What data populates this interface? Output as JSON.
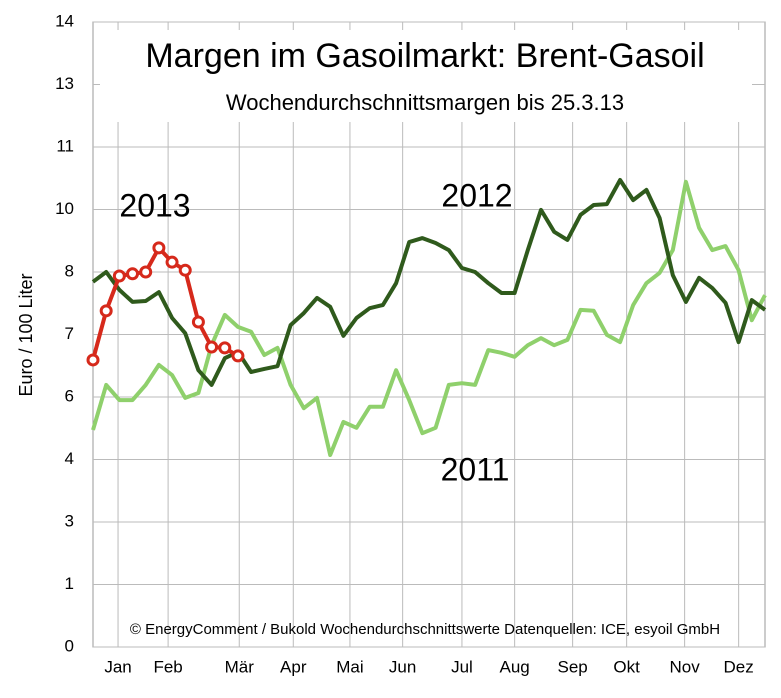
{
  "chart_data": {
    "type": "line",
    "title": "Margen im Gasoilmarkt: Brent-Gasoil",
    "subtitle": "Wochendurchschnittsmargen bis 25.3.13",
    "y_label": "Euro / 100 Liter",
    "note": "© EnergyComment / Bukold Wochendurchschnittswerte Datenquellen: ICE, esyoil GmbH",
    "x": [
      1,
      2,
      3,
      4,
      5,
      6,
      7,
      8,
      9,
      10,
      11,
      12,
      13,
      14,
      15,
      16,
      17,
      18,
      19,
      20,
      21,
      22,
      23,
      24,
      25,
      26,
      27,
      28,
      29,
      30,
      31,
      32,
      33,
      34,
      35,
      36,
      37,
      38,
      39,
      40,
      41,
      42,
      43,
      44,
      45,
      46,
      47,
      48,
      49,
      50,
      51,
      52
    ],
    "xlim": [
      1,
      52
    ],
    "xticks": [
      {
        "value": 2.9,
        "label": "Jan"
      },
      {
        "value": 6.7,
        "label": "Feb"
      },
      {
        "value": 12.1,
        "label": "Mär"
      },
      {
        "value": 16.2,
        "label": "Apr"
      },
      {
        "value": 20.5,
        "label": "Mai"
      },
      {
        "value": 24.5,
        "label": "Jun"
      },
      {
        "value": 29,
        "label": "Jul"
      },
      {
        "value": 33,
        "label": "Aug"
      },
      {
        "value": 37.4,
        "label": "Sep"
      },
      {
        "value": 41.5,
        "label": "Okt"
      },
      {
        "value": 45.9,
        "label": "Nov"
      },
      {
        "value": 50,
        "label": "Dez"
      }
    ],
    "ylim": [
      0,
      14
    ],
    "yticks": [
      0,
      {
        "value": 1.4,
        "label": "1"
      },
      {
        "value": 2.8,
        "label": "3"
      },
      {
        "value": 4.2,
        "label": "4"
      },
      {
        "value": 5.6,
        "label": "6"
      },
      7,
      {
        "value": 8.4,
        "label": "8"
      },
      {
        "value": 9.8,
        "label": "10"
      },
      {
        "value": 11.2,
        "label": "11"
      },
      {
        "value": 12.6,
        "label": "13"
      },
      14
    ],
    "grid": true,
    "series": [
      {
        "name": "2011",
        "color": "#8fd06c",
        "values": [
          4.86,
          5.87,
          5.53,
          5.53,
          5.87,
          6.32,
          6.09,
          5.58,
          5.69,
          6.76,
          7.44,
          7.17,
          7.06,
          6.54,
          6.7,
          5.87,
          5.35,
          5.58,
          4.3,
          5.04,
          4.91,
          5.38,
          5.38,
          6.2,
          5.53,
          4.79,
          4.91,
          5.87,
          5.91,
          5.87,
          6.65,
          6.59,
          6.5,
          6.76,
          6.92,
          6.76,
          6.88,
          7.55,
          7.53,
          6.99,
          6.83,
          7.66,
          8.15,
          8.38,
          8.89,
          10.42,
          9.39,
          8.89,
          8.98,
          8.44,
          7.32,
          7.88
        ]
      },
      {
        "name": "2012",
        "color": "#2f5a1c",
        "values": [
          8.18,
          8.4,
          8.0,
          7.73,
          7.75,
          7.95,
          7.37,
          7.03,
          6.2,
          5.87,
          6.47,
          6.61,
          6.16,
          6.23,
          6.29,
          7.21,
          7.48,
          7.82,
          7.62,
          6.97,
          7.37,
          7.59,
          7.66,
          8.15,
          9.07,
          9.16,
          9.05,
          8.89,
          8.49,
          8.4,
          8.15,
          7.93,
          7.93,
          8.89,
          9.79,
          9.3,
          9.12,
          9.68,
          9.9,
          9.92,
          10.46,
          10.01,
          10.24,
          9.61,
          8.33,
          7.73,
          8.27,
          8.04,
          7.71,
          6.83,
          7.77,
          7.55
        ]
      },
      {
        "name": "2013",
        "color": "#d6291b",
        "markers": true,
        "values": [
          6.43,
          7.53,
          8.31,
          8.36,
          8.4,
          8.94,
          8.62,
          8.44,
          7.28,
          6.72,
          6.7,
          6.52,
          null,
          null,
          null,
          null,
          null,
          null,
          null,
          null,
          null,
          null,
          null,
          null,
          null,
          null,
          null,
          null,
          null,
          null,
          null,
          null,
          null,
          null,
          null,
          null,
          null,
          null,
          null,
          null,
          null,
          null,
          null,
          null,
          null,
          null,
          null,
          null,
          null,
          null,
          null,
          null
        ]
      }
    ]
  }
}
